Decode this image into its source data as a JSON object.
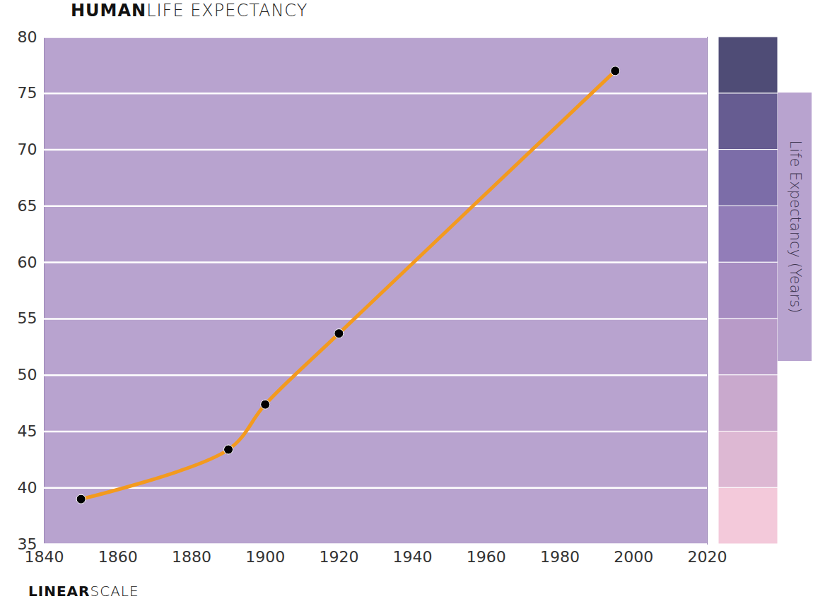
{
  "chart_data": {
    "type": "line",
    "title": "HUMAN LIFE EXPECTANCY",
    "caption": "LINEAR SCALE",
    "y_label": "Life Expectancy (Years)",
    "x": [
      1850,
      1890,
      1900,
      1920,
      1995
    ],
    "values": [
      39,
      43.4,
      47.4,
      53.7,
      77
    ],
    "color": "#f39a1e",
    "marker": "circle",
    "xlim": [
      1840,
      2020
    ],
    "ylim": [
      35,
      80
    ],
    "xticks": [
      1840,
      1860,
      1880,
      1900,
      1920,
      1940,
      1960,
      1980,
      2000,
      2020
    ],
    "yticks": [
      35,
      40,
      45,
      50,
      55,
      60,
      65,
      70,
      75,
      80
    ],
    "grid": true
  }
}
